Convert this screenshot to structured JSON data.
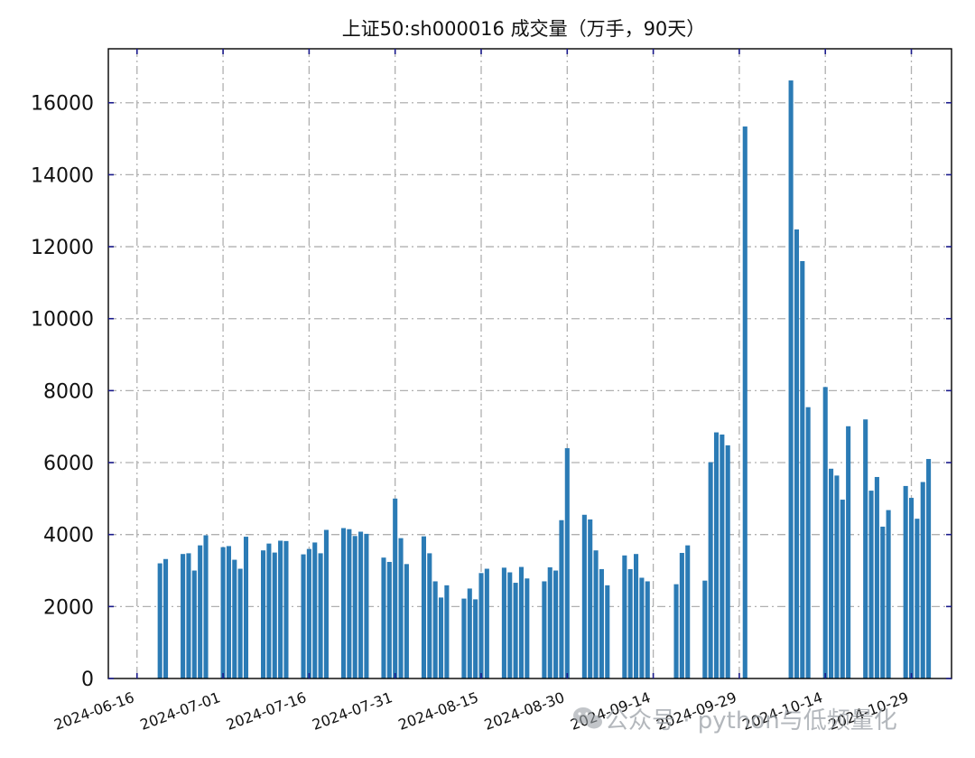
{
  "chart_data": {
    "type": "bar",
    "title": "上证50:sh000016 成交量（万手，90天）",
    "xlabel": "",
    "ylabel": "",
    "ylim": [
      0,
      17500
    ],
    "xlim": [
      "2024-06-11",
      "2024-11-05"
    ],
    "grid": true,
    "bar_color": "#2b7bb5",
    "yticks": [
      0,
      2000,
      4000,
      6000,
      8000,
      10000,
      12000,
      14000,
      16000
    ],
    "xticks": [
      "2024-06-16",
      "2024-07-01",
      "2024-07-16",
      "2024-07-31",
      "2024-08-15",
      "2024-08-30",
      "2024-09-14",
      "2024-09-29",
      "2024-10-14",
      "2024-10-29"
    ],
    "dates": [
      "2024-06-20",
      "2024-06-21",
      "2024-06-24",
      "2024-06-25",
      "2024-06-26",
      "2024-06-27",
      "2024-06-28",
      "2024-07-01",
      "2024-07-02",
      "2024-07-03",
      "2024-07-04",
      "2024-07-05",
      "2024-07-08",
      "2024-07-09",
      "2024-07-10",
      "2024-07-11",
      "2024-07-12",
      "2024-07-15",
      "2024-07-16",
      "2024-07-17",
      "2024-07-18",
      "2024-07-19",
      "2024-07-22",
      "2024-07-23",
      "2024-07-24",
      "2024-07-25",
      "2024-07-26",
      "2024-07-29",
      "2024-07-30",
      "2024-07-31",
      "2024-08-01",
      "2024-08-02",
      "2024-08-05",
      "2024-08-06",
      "2024-08-07",
      "2024-08-08",
      "2024-08-09",
      "2024-08-12",
      "2024-08-13",
      "2024-08-14",
      "2024-08-15",
      "2024-08-16",
      "2024-08-19",
      "2024-08-20",
      "2024-08-21",
      "2024-08-22",
      "2024-08-23",
      "2024-08-26",
      "2024-08-27",
      "2024-08-28",
      "2024-08-29",
      "2024-08-30",
      "2024-09-02",
      "2024-09-03",
      "2024-09-04",
      "2024-09-05",
      "2024-09-06",
      "2024-09-09",
      "2024-09-10",
      "2024-09-11",
      "2024-09-12",
      "2024-09-13",
      "2024-09-18",
      "2024-09-19",
      "2024-09-20",
      "2024-09-23",
      "2024-09-24",
      "2024-09-25",
      "2024-09-26",
      "2024-09-27",
      "2024-09-30",
      "2024-10-08",
      "2024-10-09",
      "2024-10-10",
      "2024-10-11",
      "2024-10-14",
      "2024-10-15",
      "2024-10-16",
      "2024-10-17",
      "2024-10-18",
      "2024-10-21",
      "2024-10-22",
      "2024-10-23",
      "2024-10-24",
      "2024-10-25",
      "2024-10-28",
      "2024-10-29",
      "2024-10-30",
      "2024-10-31",
      "2024-11-01"
    ],
    "values": [
      3200,
      3320,
      3460,
      3480,
      3000,
      3700,
      3980,
      3650,
      3680,
      3300,
      3050,
      3940,
      3560,
      3750,
      3500,
      3830,
      3820,
      3450,
      3600,
      3780,
      3480,
      4130,
      4180,
      4150,
      3960,
      4080,
      4020,
      3360,
      3240,
      5000,
      3900,
      3180,
      3950,
      3480,
      2700,
      2250,
      2590,
      2220,
      2500,
      2200,
      2930,
      3050,
      3080,
      2950,
      2660,
      3100,
      2780,
      2700,
      3090,
      3000,
      4400,
      6400,
      4550,
      4420,
      3560,
      3040,
      2590,
      3420,
      3040,
      3460,
      2800,
      2700,
      2620,
      3490,
      3700,
      2720,
      6010,
      6840,
      6780,
      6480,
      15340,
      16620,
      12480,
      11600,
      7540,
      8100,
      5830,
      5640,
      4970,
      7010,
      7200,
      5220,
      5600,
      4220,
      4680,
      5350,
      5020,
      4440,
      5460,
      6100
    ]
  },
  "watermark": {
    "text": "公众号 · python与低频量化",
    "icon": "wechat-icon"
  }
}
